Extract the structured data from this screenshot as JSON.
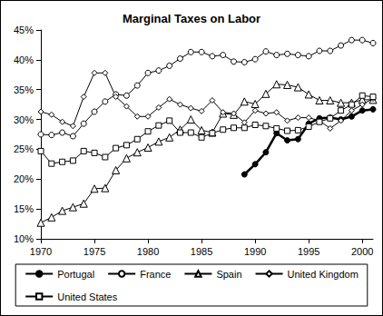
{
  "chart_data": {
    "type": "line",
    "title": "Marginal Taxes on Labor",
    "x": [
      1970,
      1971,
      1972,
      1973,
      1974,
      1975,
      1976,
      1977,
      1978,
      1979,
      1980,
      1981,
      1982,
      1983,
      1984,
      1985,
      1986,
      1987,
      1988,
      1989,
      1990,
      1991,
      1992,
      1993,
      1994,
      1995,
      1996,
      1997,
      1998,
      1999,
      2000,
      2001
    ],
    "xlim": [
      1970,
      2001
    ],
    "xticks": [
      1970,
      1975,
      1980,
      1985,
      1990,
      1995,
      2000
    ],
    "ylim": [
      10,
      45
    ],
    "yticks": [
      {
        "value": 10,
        "label": "10%"
      },
      {
        "value": 15,
        "label": "15%"
      },
      {
        "value": 20,
        "label": "20%"
      },
      {
        "value": 25,
        "label": "25%"
      },
      {
        "value": 30,
        "label": "30%"
      },
      {
        "value": 35,
        "label": "35%"
      },
      {
        "value": 40,
        "label": "40%"
      },
      {
        "value": 45,
        "label": "45%"
      }
    ],
    "grid": false,
    "legend": "bottom",
    "series": [
      {
        "name": "Portugal",
        "color": "#000000",
        "marker": "filled_circle",
        "values": [
          null,
          null,
          null,
          null,
          null,
          null,
          null,
          null,
          null,
          null,
          null,
          null,
          null,
          null,
          null,
          null,
          null,
          null,
          null,
          20.8,
          22.5,
          24.5,
          27.7,
          26.5,
          26.7,
          29.3,
          30.2,
          30.3,
          30.0,
          30.5,
          31.5,
          31.7
        ]
      },
      {
        "name": "France",
        "color": "#000000",
        "marker": "open_circle",
        "values": [
          27.5,
          27.4,
          27.8,
          27.2,
          29.3,
          31.3,
          33.0,
          34.2,
          34.0,
          35.7,
          37.8,
          38.2,
          39.0,
          40.2,
          41.3,
          41.3,
          40.6,
          40.8,
          39.7,
          39.6,
          40.1,
          41.4,
          40.8,
          41.0,
          40.8,
          40.6,
          41.5,
          41.5,
          42.4,
          43.3,
          43.3,
          42.8
        ]
      },
      {
        "name": "Spain",
        "color": "#000000",
        "marker": "open_triangle",
        "values": [
          12.7,
          13.6,
          14.7,
          15.3,
          15.9,
          18.4,
          18.5,
          21.5,
          23.5,
          24.5,
          25.3,
          26.3,
          27.0,
          28.3,
          30.0,
          28.2,
          27.8,
          31.0,
          30.8,
          33.0,
          32.6,
          34.3,
          35.9,
          35.8,
          35.4,
          34.2,
          33.2,
          33.2,
          32.8,
          32.8,
          33.3,
          33.3
        ]
      },
      {
        "name": "United Kingdom",
        "color": "#000000",
        "marker": "open_diamond",
        "values": [
          31.3,
          30.8,
          29.6,
          28.9,
          33.8,
          37.8,
          37.8,
          33.8,
          32.2,
          30.5,
          30.5,
          32.0,
          33.4,
          32.5,
          31.9,
          31.4,
          33.2,
          31.2,
          31.0,
          29.5,
          31.5,
          31.0,
          31.2,
          29.8,
          30.3,
          30.3,
          29.8,
          28.5,
          29.8,
          31.5,
          32.5,
          33.5
        ]
      },
      {
        "name": "United States",
        "color": "#000000",
        "marker": "open_square",
        "values": [
          24.7,
          22.6,
          22.9,
          23.1,
          24.7,
          24.4,
          23.7,
          25.2,
          25.7,
          26.7,
          28.0,
          29.0,
          29.8,
          27.8,
          27.8,
          27.0,
          27.7,
          28.3,
          28.6,
          28.6,
          29.1,
          28.9,
          28.5,
          28.1,
          28.2,
          28.8,
          29.6,
          30.2,
          31.5,
          32.5,
          34.0,
          33.8
        ]
      }
    ]
  }
}
